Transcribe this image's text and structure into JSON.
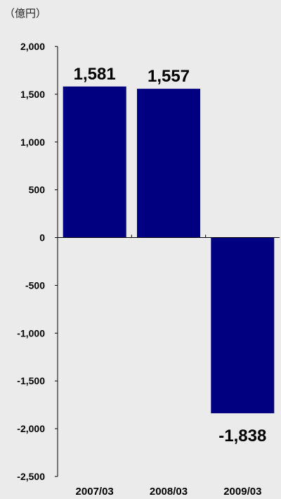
{
  "unit_label": "（億円）",
  "colors": {
    "bar": "#000080",
    "axis": "#000000",
    "text": "#000000",
    "background": "#ebebeb"
  },
  "chart_data": {
    "type": "bar",
    "title": "",
    "xlabel": "",
    "ylabel": "",
    "categories": [
      "2007/03",
      "2008/03",
      "2009/03"
    ],
    "values": [
      1581,
      1557,
      -1838
    ],
    "data_labels": [
      "1,581",
      "1,557",
      "-1,838"
    ],
    "ylim": [
      -2500,
      2000
    ],
    "yticks": [
      2000,
      1500,
      1000,
      500,
      0,
      -500,
      -1000,
      -1500,
      -2000,
      -2500
    ],
    "ytick_labels": [
      "2,000",
      "1,500",
      "1,000",
      "500",
      "0",
      "-500",
      "-1,000",
      "-1,500",
      "-2,000",
      "-2,500"
    ],
    "grid": false,
    "legend": "none"
  }
}
